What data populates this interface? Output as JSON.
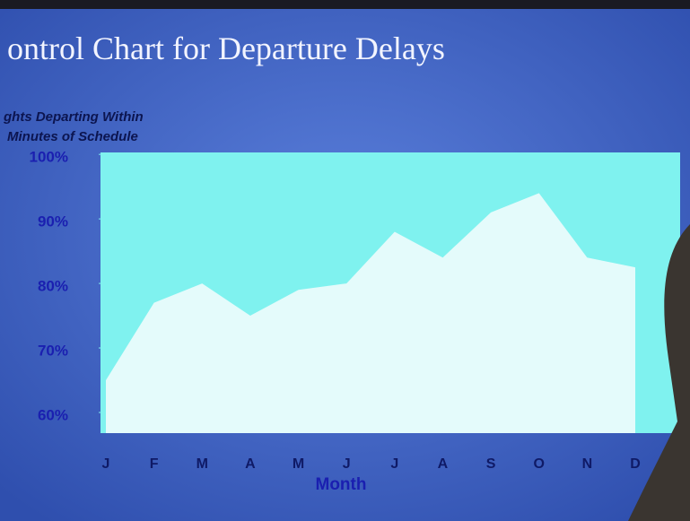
{
  "chart_data": {
    "type": "area",
    "title": "ontrol Chart for Departure Delays",
    "y_label": [
      "ghts Departing Within",
      "Minutes of Schedule"
    ],
    "x_label": "Month",
    "categories": [
      "J",
      "F",
      "M",
      "A",
      "M",
      "J",
      "J",
      "A",
      "S",
      "O",
      "N",
      "D"
    ],
    "values": [
      65,
      77,
      80,
      75,
      79,
      80,
      88,
      84,
      91,
      94,
      84,
      82.5
    ],
    "color": "#e4fbfb",
    "background": "#7ff2ef",
    "ylim": [
      56.8,
      100.3
    ],
    "yticks": [
      {
        "value": 60,
        "label": "60%"
      },
      {
        "value": 70,
        "label": "70%"
      },
      {
        "value": 80,
        "label": "80%"
      },
      {
        "value": 90,
        "label": "90%"
      },
      {
        "value": 100,
        "label": "100%"
      }
    ]
  }
}
